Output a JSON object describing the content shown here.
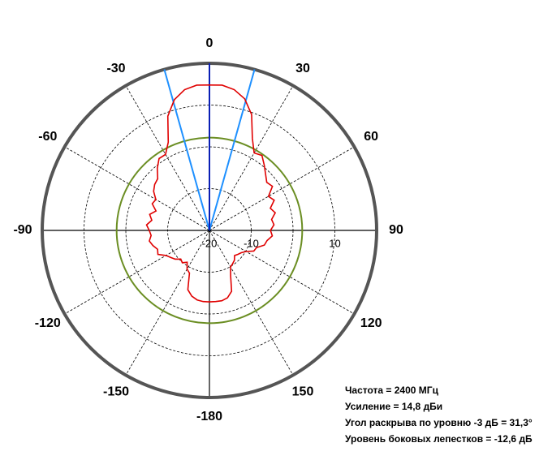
{
  "chart_data": {
    "type": "polar",
    "theta": [
      0,
      5,
      10,
      15,
      20,
      25,
      30,
      35,
      40,
      45,
      50,
      55,
      60,
      65,
      70,
      75,
      80,
      85,
      90,
      95,
      100,
      105,
      110,
      115,
      120,
      125,
      130,
      135,
      140,
      145,
      150,
      155,
      160,
      165,
      170,
      175,
      180,
      185,
      190,
      195,
      200,
      205,
      210,
      215,
      220,
      225,
      230,
      235,
      240,
      245,
      250,
      255,
      260,
      265,
      270,
      275,
      280,
      285,
      290,
      295,
      300,
      305,
      310,
      315,
      320,
      325,
      330,
      335,
      340,
      345,
      350,
      355
    ],
    "series": [
      {
        "color": "#e00000",
        "values": [
          14.8,
          14.9,
          14.2,
          12.6,
          9.5,
          4.3,
          1.4,
          1.9,
          0.4,
          -1.0,
          -2.1,
          -1.6,
          -3.7,
          -2.9,
          -4.5,
          -3.7,
          -4.9,
          -4.5,
          -5.4,
          -4.9,
          -6.0,
          -6.4,
          -8.0,
          -8.3,
          -9.9,
          -10.7,
          -11.1,
          -11.5,
          -10.7,
          -10.3,
          -9.9,
          -8.0,
          -4.5,
          -3.3,
          -2.9,
          -2.9,
          -2.9,
          -2.9,
          -3.1,
          -3.7,
          -4.9,
          -8.7,
          -9.3,
          -10.7,
          -9.9,
          -10.3,
          -9.3,
          -8.7,
          -8.0,
          -6.4,
          -6.8,
          -6.0,
          -5.4,
          -6.0,
          -5.6,
          -4.9,
          -6.0,
          -5.2,
          -6.4,
          -4.9,
          -5.2,
          -3.7,
          -2.9,
          -2.5,
          -0.6,
          1.0,
          1.0,
          3.3,
          9.1,
          12.4,
          14.2,
          14.9
        ]
      }
    ],
    "rlim": [
      -20,
      20
    ],
    "rticks": [
      -20,
      -10,
      10
    ],
    "rgrid": [
      -10,
      0,
      10
    ],
    "angle_ticks": [
      0,
      30,
      60,
      90,
      120,
      150,
      -180,
      -150,
      -120,
      -90,
      -60,
      -30
    ],
    "reference_circle": {
      "value": 2.2,
      "color": "#6b8e23"
    },
    "main_direction": {
      "value": 0,
      "color": "#0a1fb5"
    },
    "beamwidth": {
      "value": 31.3,
      "color": "#1e90ff"
    },
    "annotations": [
      "Частота = 2400 МГц",
      "Усиление = 14,8 дБи",
      "Угол раскрыва по уровню -3 дБ = 31,3°",
      "Уровень боковых лепестков = -12,6 дБ"
    ]
  }
}
